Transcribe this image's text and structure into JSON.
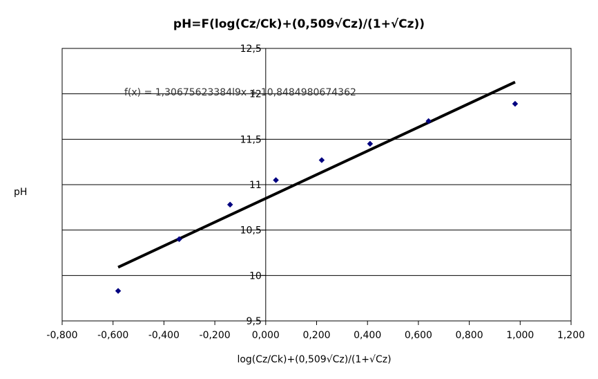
{
  "chart_data": {
    "type": "scatter",
    "title": "pH=F(log(Cz/Ck)+(0,509√Cz)/(1+√Cz))",
    "xlabel": "log(Cz/Ck)+(0,509√Cz)/(1+√Cz)",
    "ylabel": "pH",
    "xlim": [
      -0.8,
      1.2
    ],
    "ylim": [
      9.5,
      12.5
    ],
    "x_ticks": [
      "-0,800",
      "-0,600",
      "-0,400",
      "-0,200",
      "0,000",
      "0,200",
      "0,400",
      "0,600",
      "0,800",
      "1,000",
      "1,200"
    ],
    "y_ticks": [
      "9,5",
      "10",
      "10,5",
      "11",
      "11,5",
      "12",
      "12,5"
    ],
    "grid": "horizontal",
    "points": [
      {
        "x": -0.58,
        "y": 9.83
      },
      {
        "x": -0.34,
        "y": 10.4
      },
      {
        "x": -0.14,
        "y": 10.78
      },
      {
        "x": 0.04,
        "y": 11.05
      },
      {
        "x": 0.22,
        "y": 11.27
      },
      {
        "x": 0.41,
        "y": 11.45
      },
      {
        "x": 0.64,
        "y": 11.7
      },
      {
        "x": 0.98,
        "y": 11.89
      }
    ],
    "trendline": {
      "slope": 1.30675623384,
      "intercept": 10.8484980674362,
      "x_range": [
        -0.58,
        0.98
      ],
      "label": "f(x) = 1,30675623384l9x + 10,8484980674362"
    },
    "marker_color": "#000080",
    "line_color": "#000000"
  }
}
